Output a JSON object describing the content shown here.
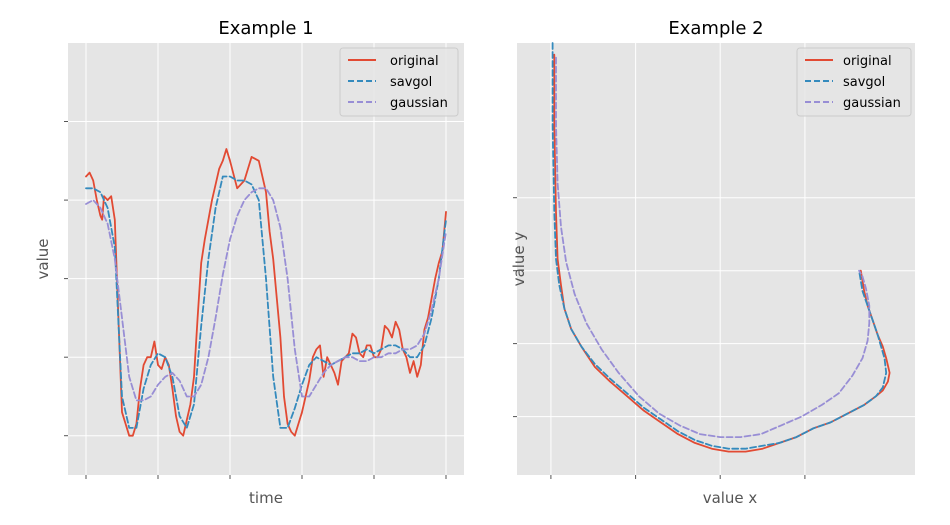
{
  "figure": {
    "style": "ggplot",
    "background": "#ffffff",
    "panel_color": "#e5e5e5",
    "grid_color": "#ffffff",
    "tick_color": "#555555"
  },
  "chart_data": [
    {
      "type": "line",
      "title": "Example 1",
      "xlabel": "time",
      "ylabel": "value",
      "grid": true,
      "legend": "top-right",
      "tick_labels_visible": false,
      "xlim": [
        -0.05,
        1.05
      ],
      "ylim": [
        -0.1,
        1.0
      ],
      "xticks": [
        0,
        0.2,
        0.4,
        0.6,
        0.8,
        1.0
      ],
      "yticks": [
        0,
        0.2,
        0.4,
        0.6,
        0.8
      ],
      "series": [
        {
          "name": "original",
          "color": "#e24a33",
          "dash": "solid",
          "x": [
            0.0,
            0.01,
            0.02,
            0.03,
            0.04,
            0.045,
            0.05,
            0.06,
            0.07,
            0.08,
            0.09,
            0.1,
            0.11,
            0.12,
            0.13,
            0.14,
            0.15,
            0.16,
            0.17,
            0.18,
            0.19,
            0.2,
            0.21,
            0.22,
            0.23,
            0.24,
            0.25,
            0.26,
            0.27,
            0.28,
            0.29,
            0.3,
            0.31,
            0.32,
            0.33,
            0.34,
            0.35,
            0.36,
            0.37,
            0.38,
            0.39,
            0.4,
            0.42,
            0.44,
            0.46,
            0.48,
            0.5,
            0.51,
            0.52,
            0.53,
            0.54,
            0.55,
            0.56,
            0.57,
            0.58,
            0.59,
            0.6,
            0.61,
            0.62,
            0.63,
            0.64,
            0.65,
            0.66,
            0.67,
            0.68,
            0.69,
            0.7,
            0.71,
            0.72,
            0.73,
            0.74,
            0.75,
            0.76,
            0.77,
            0.78,
            0.79,
            0.8,
            0.81,
            0.82,
            0.83,
            0.84,
            0.85,
            0.86,
            0.87,
            0.88,
            0.89,
            0.9,
            0.91,
            0.92,
            0.93,
            0.94,
            0.95,
            0.96,
            0.97,
            0.98,
            0.99,
            1.0
          ],
          "y": [
            0.66,
            0.67,
            0.65,
            0.6,
            0.56,
            0.55,
            0.61,
            0.6,
            0.61,
            0.55,
            0.3,
            0.06,
            0.03,
            0.0,
            0.0,
            0.03,
            0.12,
            0.18,
            0.2,
            0.2,
            0.24,
            0.18,
            0.17,
            0.2,
            0.18,
            0.12,
            0.05,
            0.01,
            0.0,
            0.04,
            0.08,
            0.15,
            0.3,
            0.44,
            0.5,
            0.55,
            0.6,
            0.64,
            0.68,
            0.7,
            0.73,
            0.7,
            0.63,
            0.65,
            0.71,
            0.7,
            0.62,
            0.52,
            0.45,
            0.35,
            0.25,
            0.1,
            0.03,
            0.01,
            0.0,
            0.03,
            0.06,
            0.1,
            0.14,
            0.2,
            0.22,
            0.23,
            0.15,
            0.2,
            0.18,
            0.16,
            0.13,
            0.19,
            0.2,
            0.21,
            0.26,
            0.25,
            0.21,
            0.2,
            0.23,
            0.23,
            0.2,
            0.2,
            0.22,
            0.28,
            0.27,
            0.25,
            0.29,
            0.27,
            0.22,
            0.2,
            0.16,
            0.19,
            0.15,
            0.18,
            0.27,
            0.3,
            0.35,
            0.4,
            0.44,
            0.47,
            0.57
          ]
        },
        {
          "name": "savgol",
          "color": "#348abd",
          "dash": "dashed",
          "x": [
            0.0,
            0.02,
            0.04,
            0.06,
            0.08,
            0.1,
            0.12,
            0.14,
            0.16,
            0.18,
            0.2,
            0.22,
            0.24,
            0.26,
            0.28,
            0.3,
            0.32,
            0.34,
            0.36,
            0.38,
            0.4,
            0.42,
            0.44,
            0.46,
            0.48,
            0.5,
            0.52,
            0.54,
            0.56,
            0.58,
            0.6,
            0.62,
            0.64,
            0.66,
            0.68,
            0.7,
            0.72,
            0.74,
            0.76,
            0.78,
            0.8,
            0.82,
            0.84,
            0.86,
            0.88,
            0.9,
            0.92,
            0.94,
            0.96,
            0.98,
            1.0
          ],
          "y": [
            0.63,
            0.63,
            0.62,
            0.58,
            0.48,
            0.1,
            0.02,
            0.02,
            0.12,
            0.18,
            0.21,
            0.2,
            0.15,
            0.05,
            0.02,
            0.08,
            0.28,
            0.45,
            0.58,
            0.66,
            0.66,
            0.65,
            0.65,
            0.64,
            0.6,
            0.4,
            0.15,
            0.02,
            0.02,
            0.07,
            0.13,
            0.18,
            0.2,
            0.19,
            0.18,
            0.19,
            0.2,
            0.21,
            0.21,
            0.22,
            0.21,
            0.22,
            0.23,
            0.23,
            0.22,
            0.2,
            0.2,
            0.23,
            0.3,
            0.4,
            0.55
          ]
        },
        {
          "name": "gaussian",
          "color": "#988ed5",
          "dash": "dashed",
          "x": [
            0.0,
            0.02,
            0.04,
            0.06,
            0.08,
            0.1,
            0.12,
            0.14,
            0.16,
            0.18,
            0.2,
            0.22,
            0.24,
            0.26,
            0.28,
            0.3,
            0.32,
            0.34,
            0.36,
            0.38,
            0.4,
            0.42,
            0.44,
            0.46,
            0.48,
            0.5,
            0.52,
            0.54,
            0.56,
            0.58,
            0.6,
            0.62,
            0.64,
            0.66,
            0.68,
            0.7,
            0.72,
            0.74,
            0.76,
            0.78,
            0.8,
            0.82,
            0.84,
            0.86,
            0.88,
            0.9,
            0.92,
            0.94,
            0.96,
            0.98,
            1.0
          ],
          "y": [
            0.59,
            0.6,
            0.58,
            0.54,
            0.45,
            0.3,
            0.15,
            0.09,
            0.09,
            0.1,
            0.13,
            0.15,
            0.16,
            0.14,
            0.1,
            0.1,
            0.13,
            0.2,
            0.3,
            0.41,
            0.5,
            0.56,
            0.6,
            0.62,
            0.63,
            0.63,
            0.6,
            0.53,
            0.4,
            0.22,
            0.1,
            0.1,
            0.13,
            0.16,
            0.18,
            0.19,
            0.2,
            0.2,
            0.19,
            0.19,
            0.2,
            0.2,
            0.21,
            0.21,
            0.22,
            0.22,
            0.23,
            0.26,
            0.32,
            0.4,
            0.52
          ]
        }
      ]
    },
    {
      "type": "line",
      "title": "Example 2",
      "xlabel": "value x",
      "ylabel": "value y",
      "grid": true,
      "legend": "top-right",
      "tick_labels_visible": false,
      "xlim": [
        -0.2,
        2.15
      ],
      "ylim": [
        -0.1,
        1.38
      ],
      "xticks": [
        0,
        0.5,
        1.0,
        1.5
      ],
      "yticks": [
        0.1,
        0.35,
        0.6,
        0.85
      ],
      "series": [
        {
          "name": "original",
          "color": "#e24a33",
          "dash": "solid",
          "x": [
            0.02,
            0.02,
            0.03,
            0.04,
            0.06,
            0.08,
            0.12,
            0.18,
            0.26,
            0.35,
            0.45,
            0.55,
            0.65,
            0.75,
            0.85,
            0.95,
            1.05,
            1.15,
            1.25,
            1.35,
            1.45,
            1.55,
            1.65,
            1.75,
            1.85,
            1.92,
            1.96,
            1.99,
            2.0,
            1.98,
            1.96,
            1.93,
            1.9,
            1.87,
            1.85,
            1.83
          ],
          "y": [
            1.34,
            1.1,
            0.8,
            0.64,
            0.55,
            0.47,
            0.4,
            0.34,
            0.27,
            0.22,
            0.17,
            0.12,
            0.08,
            0.04,
            0.01,
            -0.01,
            -0.02,
            -0.02,
            -0.01,
            0.01,
            0.03,
            0.06,
            0.08,
            0.11,
            0.14,
            0.17,
            0.19,
            0.22,
            0.25,
            0.3,
            0.34,
            0.38,
            0.43,
            0.48,
            0.53,
            0.6
          ]
        },
        {
          "name": "savgol",
          "color": "#348abd",
          "dash": "dashed",
          "x": [
            0.01,
            0.01,
            0.02,
            0.03,
            0.05,
            0.08,
            0.12,
            0.18,
            0.26,
            0.35,
            0.45,
            0.55,
            0.65,
            0.75,
            0.85,
            0.95,
            1.05,
            1.15,
            1.25,
            1.35,
            1.45,
            1.55,
            1.65,
            1.75,
            1.85,
            1.92,
            1.96,
            1.98,
            1.97,
            1.95,
            1.93,
            1.9,
            1.87,
            1.84,
            1.82
          ],
          "y": [
            1.38,
            1.1,
            0.8,
            0.64,
            0.55,
            0.47,
            0.4,
            0.34,
            0.28,
            0.23,
            0.18,
            0.13,
            0.09,
            0.05,
            0.02,
            0.0,
            -0.01,
            -0.01,
            0.0,
            0.01,
            0.03,
            0.06,
            0.08,
            0.11,
            0.14,
            0.17,
            0.2,
            0.25,
            0.3,
            0.34,
            0.38,
            0.43,
            0.48,
            0.53,
            0.6
          ]
        },
        {
          "name": "gaussian",
          "color": "#988ed5",
          "dash": "dashed",
          "x": [
            0.03,
            0.03,
            0.04,
            0.06,
            0.09,
            0.14,
            0.21,
            0.3,
            0.4,
            0.52,
            0.64,
            0.76,
            0.88,
            1.0,
            1.12,
            1.24,
            1.36,
            1.48,
            1.6,
            1.7,
            1.78,
            1.84,
            1.87,
            1.88,
            1.88,
            1.86,
            1.84,
            1.82
          ],
          "y": [
            1.33,
            1.1,
            0.9,
            0.75,
            0.63,
            0.52,
            0.42,
            0.33,
            0.25,
            0.17,
            0.11,
            0.07,
            0.04,
            0.03,
            0.03,
            0.04,
            0.07,
            0.1,
            0.14,
            0.18,
            0.24,
            0.3,
            0.36,
            0.42,
            0.48,
            0.54,
            0.58,
            0.6
          ]
        }
      ]
    }
  ]
}
